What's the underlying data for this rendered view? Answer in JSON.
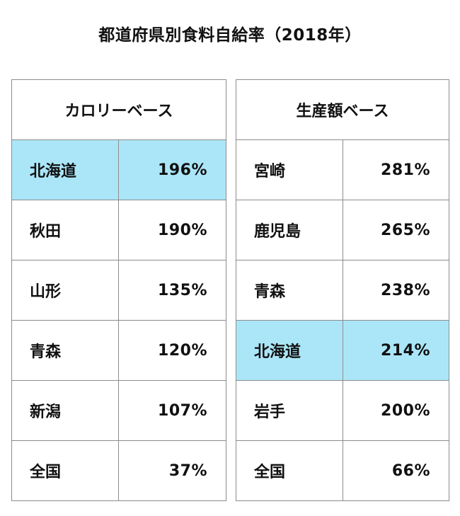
{
  "title": "都道府県別食料自給率（2018年）",
  "highlight_color": "#abe6f8",
  "calorie": {
    "header": "カロリーベース",
    "rows": [
      {
        "pref": "北海道",
        "value": "196%",
        "highlight": true
      },
      {
        "pref": "秋田",
        "value": "190%",
        "highlight": false
      },
      {
        "pref": "山形",
        "value": "135%",
        "highlight": false
      },
      {
        "pref": "青森",
        "value": "120%",
        "highlight": false
      },
      {
        "pref": "新潟",
        "value": "107%",
        "highlight": false
      },
      {
        "pref": "全国",
        "value": "37%",
        "highlight": false
      }
    ]
  },
  "production": {
    "header": "生産額ベース",
    "rows": [
      {
        "pref": "宮崎",
        "value": "281%",
        "highlight": false
      },
      {
        "pref": "鹿児島",
        "value": "265%",
        "highlight": false
      },
      {
        "pref": "青森",
        "value": "238%",
        "highlight": false
      },
      {
        "pref": "北海道",
        "value": "214%",
        "highlight": true
      },
      {
        "pref": "岩手",
        "value": "200%",
        "highlight": false
      },
      {
        "pref": "全国",
        "value": "66%",
        "highlight": false
      }
    ]
  }
}
